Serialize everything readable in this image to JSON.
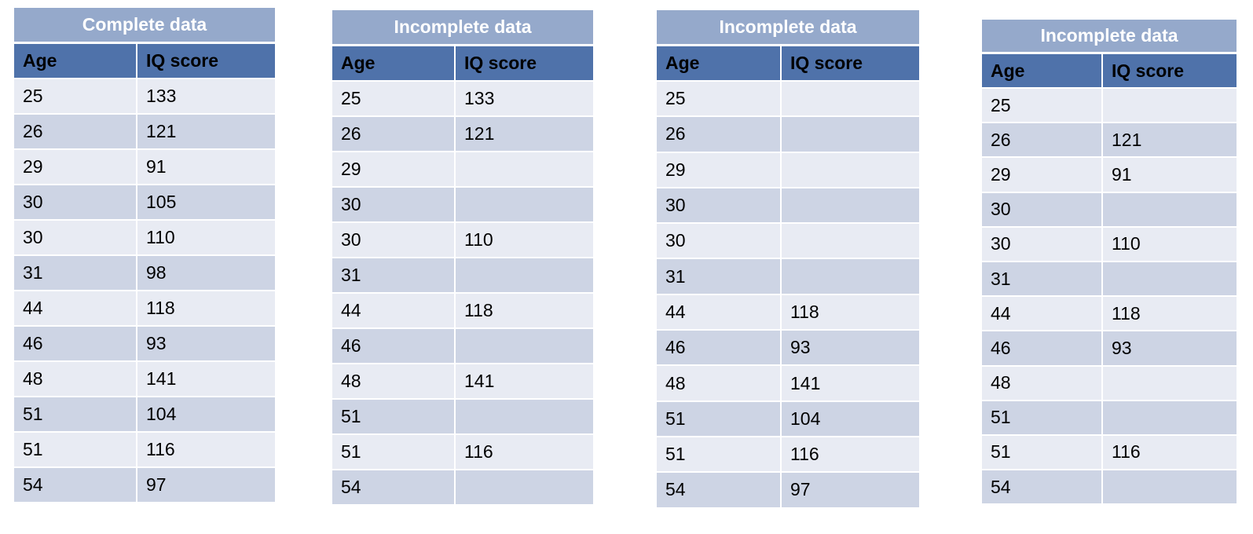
{
  "tables": [
    {
      "title": "Complete data",
      "headers": [
        "Age",
        "IQ score"
      ],
      "rows": [
        [
          "25",
          "133"
        ],
        [
          "26",
          "121"
        ],
        [
          "29",
          "91"
        ],
        [
          "30",
          "105"
        ],
        [
          "30",
          "110"
        ],
        [
          "31",
          "98"
        ],
        [
          "44",
          "118"
        ],
        [
          "46",
          "93"
        ],
        [
          "48",
          "141"
        ],
        [
          "51",
          "104"
        ],
        [
          "51",
          "116"
        ],
        [
          "54",
          "97"
        ]
      ]
    },
    {
      "title": "Incomplete data",
      "headers": [
        "Age",
        "IQ score"
      ],
      "rows": [
        [
          "25",
          "133"
        ],
        [
          "26",
          "121"
        ],
        [
          "29",
          ""
        ],
        [
          "30",
          ""
        ],
        [
          "30",
          "110"
        ],
        [
          "31",
          ""
        ],
        [
          "44",
          "118"
        ],
        [
          "46",
          ""
        ],
        [
          "48",
          "141"
        ],
        [
          "51",
          ""
        ],
        [
          "51",
          "116"
        ],
        [
          "54",
          ""
        ]
      ]
    },
    {
      "title": "Incomplete data",
      "headers": [
        "Age",
        "IQ score"
      ],
      "rows": [
        [
          "25",
          ""
        ],
        [
          "26",
          ""
        ],
        [
          "29",
          ""
        ],
        [
          "30",
          ""
        ],
        [
          "30",
          ""
        ],
        [
          "31",
          ""
        ],
        [
          "44",
          "118"
        ],
        [
          "46",
          "93"
        ],
        [
          "48",
          "141"
        ],
        [
          "51",
          "104"
        ],
        [
          "51",
          "116"
        ],
        [
          "54",
          "97"
        ]
      ]
    },
    {
      "title": "Incomplete data",
      "headers": [
        "Age",
        "IQ score"
      ],
      "rows": [
        [
          "25",
          ""
        ],
        [
          "26",
          "121"
        ],
        [
          "29",
          "91"
        ],
        [
          "30",
          ""
        ],
        [
          "30",
          "110"
        ],
        [
          "31",
          ""
        ],
        [
          "44",
          "118"
        ],
        [
          "46",
          "93"
        ],
        [
          "48",
          ""
        ],
        [
          "51",
          ""
        ],
        [
          "51",
          "116"
        ],
        [
          "54",
          ""
        ]
      ]
    }
  ]
}
